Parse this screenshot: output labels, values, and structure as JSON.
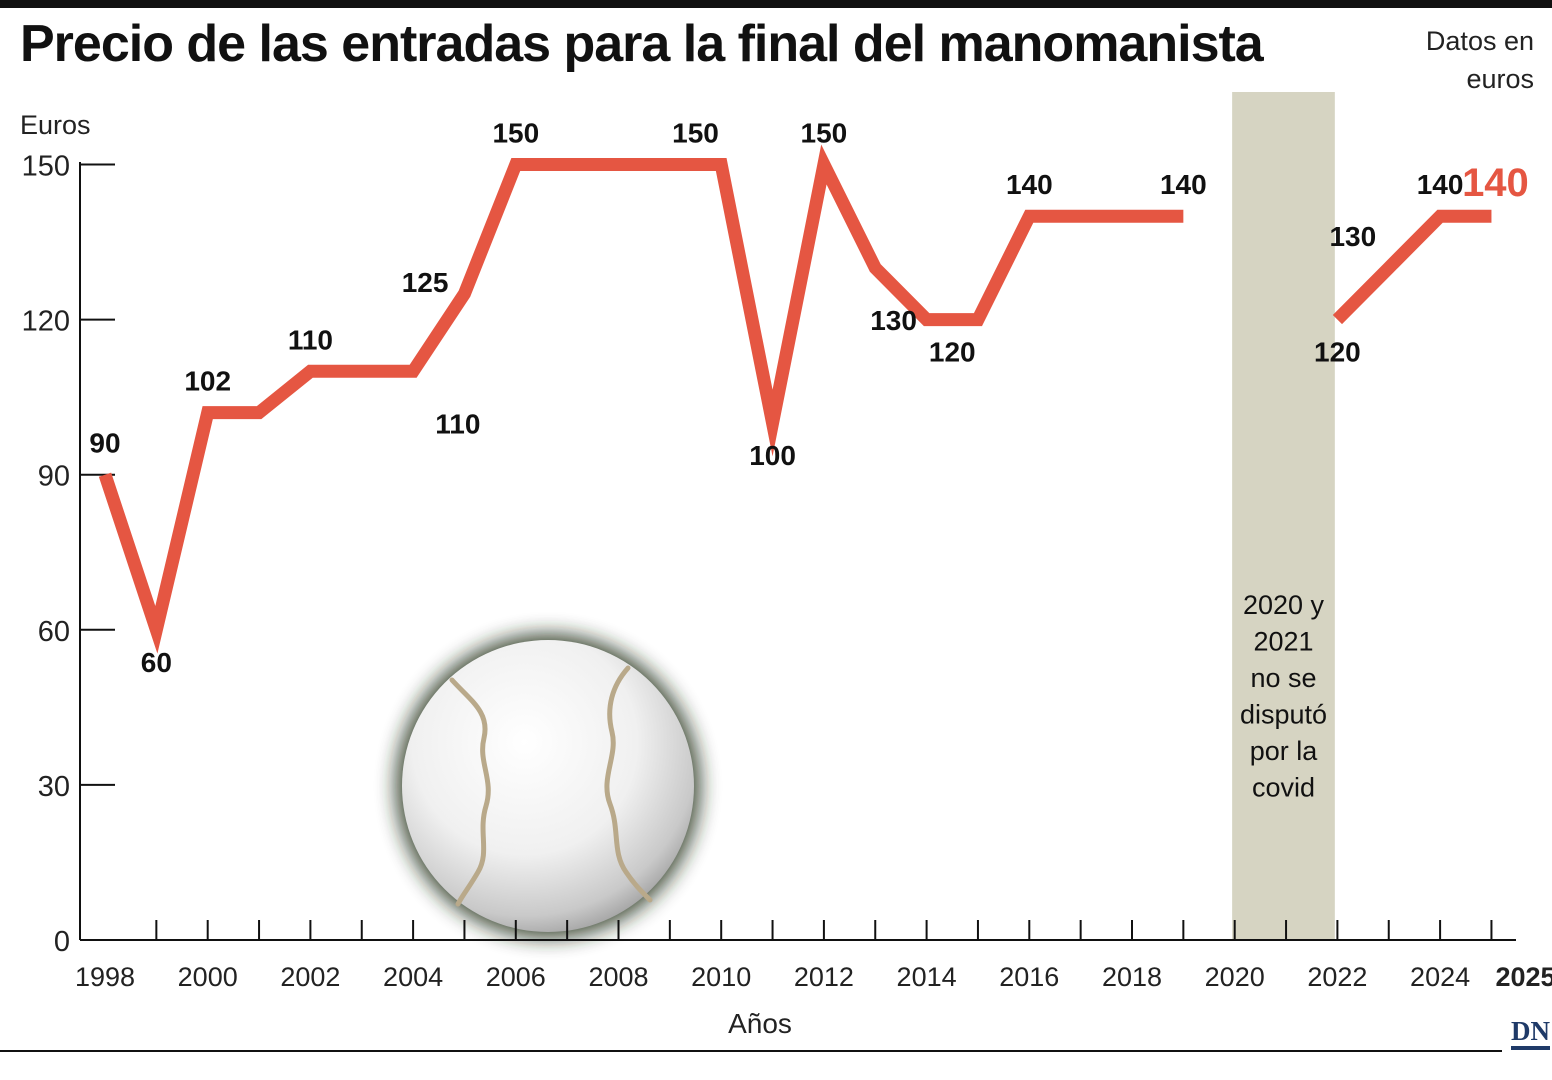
{
  "header": {
    "title": "Precio de las entradas para la final del manomanista",
    "units_note": "Datos en euros"
  },
  "chart_data": {
    "type": "line",
    "title": "Precio de las entradas para la final del manomanista",
    "xlabel": "Años",
    "ylabel": "Euros",
    "ylim": [
      0,
      150
    ],
    "xlim": [
      1998,
      2025
    ],
    "yticks": [
      "0",
      "30",
      "60",
      "90",
      "120",
      "150"
    ],
    "xticks": [
      "1998",
      "2000",
      "2002",
      "2004",
      "2006",
      "2008",
      "2010",
      "2012",
      "2014",
      "2016",
      "2018",
      "2020",
      "2022",
      "2024",
      "2025"
    ],
    "grid": false,
    "line_color": "#e55642",
    "highlight_color": "#e55642",
    "shade_color": "#d6d4c2",
    "segments": [
      {
        "x": [
          1998,
          1999,
          2000,
          2001,
          2002,
          2003,
          2004,
          2005,
          2006,
          2007,
          2008,
          2009,
          2010,
          2011,
          2012,
          2013,
          2014,
          2015,
          2016,
          2017,
          2018,
          2019
        ],
        "y": [
          90,
          60,
          102,
          102,
          110,
          110,
          110,
          125,
          150,
          150,
          150,
          150,
          150,
          100,
          150,
          130,
          120,
          120,
          140,
          140,
          140,
          140
        ]
      },
      {
        "x": [
          2022,
          2023,
          2024,
          2025
        ],
        "y": [
          120,
          130,
          140,
          140
        ]
      }
    ],
    "labels": [
      {
        "x": 1998,
        "y": 90,
        "text": "90",
        "pos": "above"
      },
      {
        "x": 1999,
        "y": 60,
        "text": "60",
        "pos": "below"
      },
      {
        "x": 2000,
        "y": 102,
        "text": "102",
        "pos": "above"
      },
      {
        "x": 2002,
        "y": 110,
        "text": "110",
        "pos": "above"
      },
      {
        "x": 2005,
        "y": 125,
        "text": "125",
        "pos": "left"
      },
      {
        "x": 2005,
        "y": 110,
        "text": "110",
        "pos": "right"
      },
      {
        "x": 2006,
        "y": 150,
        "text": "150",
        "pos": "above"
      },
      {
        "x": 2009.5,
        "y": 150,
        "text": "150",
        "pos": "above"
      },
      {
        "x": 2011,
        "y": 100,
        "text": "100",
        "pos": "below"
      },
      {
        "x": 2012,
        "y": 150,
        "text": "150",
        "pos": "above"
      },
      {
        "x": 2013.5,
        "y": 130,
        "text": "130",
        "pos": "right"
      },
      {
        "x": 2014.5,
        "y": 120,
        "text": "120",
        "pos": "below"
      },
      {
        "x": 2016,
        "y": 140,
        "text": "140",
        "pos": "above"
      },
      {
        "x": 2019,
        "y": 140,
        "text": "140",
        "pos": "above"
      },
      {
        "x": 2022,
        "y": 120,
        "text": "120",
        "pos": "below"
      },
      {
        "x": 2022.3,
        "y": 130,
        "text": "130",
        "pos": "above"
      },
      {
        "x": 2024,
        "y": 140,
        "text": "140",
        "pos": "above"
      },
      {
        "x": 2025,
        "y": 140,
        "text": "140",
        "pos": "highlight"
      }
    ],
    "shaded_period": {
      "from": 2019.95,
      "to": 2021.95,
      "note_lines": [
        "2020 y",
        "2021",
        "no se",
        "disputó",
        "por la",
        "covid"
      ]
    }
  },
  "footer": {
    "brand": "DN"
  }
}
